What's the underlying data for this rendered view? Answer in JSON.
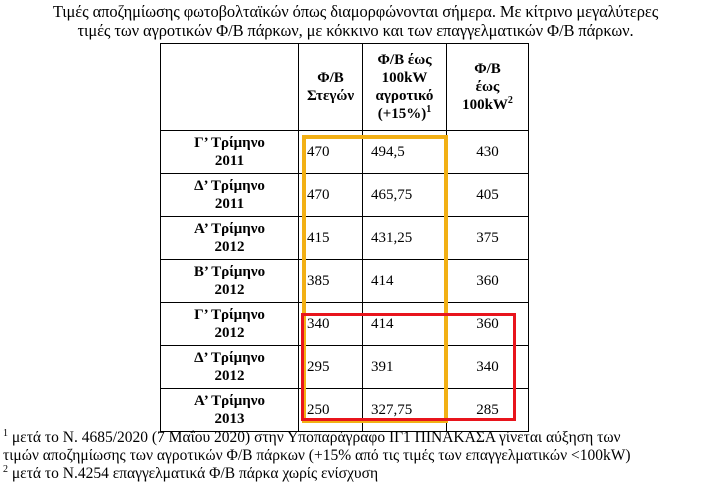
{
  "caption": {
    "line1": "Τιμές αποζημίωσης φωτοβολταϊκών όπως διαμορφώνονται σήμερα. Με κίτρινο μεγαλύτερες",
    "line2": "τιμές των αγροτικών Φ/Β πάρκων, με κόκκινο και των επαγγελματικών Φ/Β πάρκων."
  },
  "table": {
    "headers": {
      "col0": "",
      "col1_a": "Φ/Β",
      "col1_b": "Στεγών",
      "col2_a": "Φ/Β έως",
      "col2_b": "100kW",
      "col2_c": "αγροτικό",
      "col2_d": "(+15%)",
      "col2_sup": "1",
      "col3_a": "Φ/Β",
      "col3_b": "έως",
      "col3_c": "100kW",
      "col3_sup": "2"
    },
    "rows": [
      {
        "quarter": "Γ’ Τρίμηνο",
        "year": "2011",
        "roof": "470",
        "agri": "494,5",
        "pro": "430"
      },
      {
        "quarter": "Δ’ Τρίμηνο",
        "year": "2011",
        "roof": "470",
        "agri": "465,75",
        "pro": "405"
      },
      {
        "quarter": "Α’ Τρίμηνο",
        "year": "2012",
        "roof": "415",
        "agri": "431,25",
        "pro": "375"
      },
      {
        "quarter": "Β’ Τρίμηνο",
        "year": "2012",
        "roof": "385",
        "agri": "414",
        "pro": "360"
      },
      {
        "quarter": "Γ’ Τρίμηνο",
        "year": "2012",
        "roof": "340",
        "agri": "414",
        "pro": "360"
      },
      {
        "quarter": "Δ’ Τρίμηνο",
        "year": "2012",
        "roof": "295",
        "agri": "391",
        "pro": "340"
      },
      {
        "quarter": "Α’ Τρίμηνο",
        "year": "2013",
        "roof": "250",
        "agri": "327,75",
        "pro": "285"
      }
    ]
  },
  "highlights": {
    "yellow_color": "#f2b015",
    "red_color": "#e8141c"
  },
  "notes": {
    "n1_mark": "1",
    "n1_line1": "  μετά το Ν. 4685/2020 (7 Μαΐου 2020) στην Υποπαράγραφο ΙΓ1 ΠΙΝΑΚΑΣΑ γίνεται αύξηση των",
    "n1_line2": "τιμών αποζημίωσης των αγροτικών Φ/Β πάρκων  (+15% από τις τιμές των επαγγελματικών <100kW)",
    "n2_mark": "2",
    "n2_line": " μετά το Ν.4254 επαγγελματικά Φ/Β πάρκα χωρίς ενίσχυση"
  }
}
